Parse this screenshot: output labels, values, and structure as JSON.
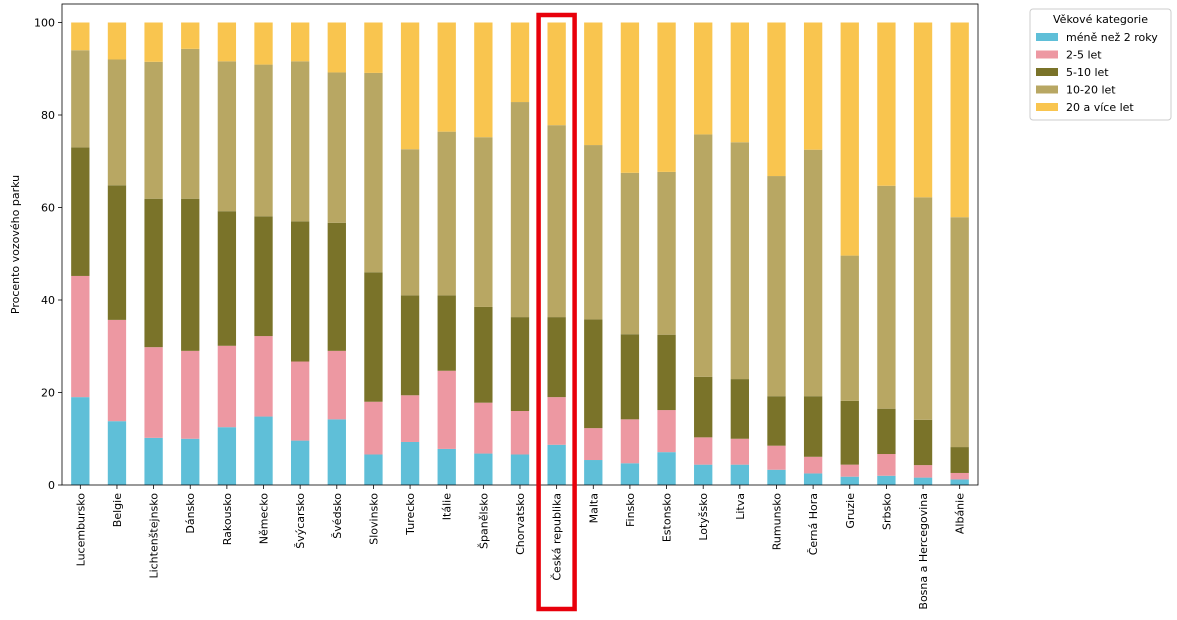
{
  "chart_data": {
    "type": "bar",
    "stacked": true,
    "ylabel": "Procento vozového parku",
    "xlabel": "",
    "ylim": [
      0,
      104
    ],
    "yticks": [
      0,
      20,
      40,
      60,
      80,
      100
    ],
    "grid": false,
    "legend": {
      "title": "Věkové kategorie",
      "placement": "outside top-right"
    },
    "categories": [
      "Lucembursko",
      "Belgie",
      "Lichtenštejnsko",
      "Dánsko",
      "Rakousko",
      "Německo",
      "Švýcarsko",
      "Švédsko",
      "Slovinsko",
      "Turecko",
      "Itálie",
      "Španělsko",
      "Chorvatsko",
      "Česká republika",
      "Malta",
      "Finsko",
      "Estonsko",
      "Lotyšsko",
      "Litva",
      "Rumunsko",
      "Černá Hora",
      "Gruzie",
      "Srbsko",
      "Bosna a Hercegovina",
      "Albánie"
    ],
    "highlighted_category": "Česká republika",
    "highlight_color": "#e8000b",
    "series": [
      {
        "name": "méně než 2 roky",
        "color": "#5fbfd8",
        "values": [
          19.0,
          13.8,
          10.2,
          10.0,
          12.5,
          14.8,
          9.6,
          14.2,
          6.6,
          9.3,
          7.8,
          6.8,
          6.6,
          8.7,
          5.4,
          4.7,
          7.1,
          4.4,
          4.4,
          3.3,
          2.5,
          1.8,
          2.0,
          1.6,
          1.2
        ]
      },
      {
        "name": "2-5 let",
        "color": "#ed98a2",
        "values": [
          26.2,
          21.9,
          19.6,
          19.0,
          17.6,
          17.4,
          17.1,
          14.8,
          11.4,
          10.1,
          16.9,
          11.0,
          9.4,
          10.3,
          6.9,
          9.5,
          9.1,
          5.9,
          5.6,
          5.2,
          3.6,
          2.6,
          4.7,
          2.7,
          1.4
        ]
      },
      {
        "name": "5-10 let",
        "color": "#7a7329",
        "values": [
          27.8,
          29.1,
          32.1,
          32.9,
          29.1,
          25.9,
          30.3,
          27.7,
          28.0,
          21.6,
          16.3,
          20.7,
          20.3,
          17.3,
          23.5,
          18.4,
          16.3,
          13.1,
          12.9,
          10.7,
          13.1,
          13.8,
          9.8,
          9.8,
          5.6
        ]
      },
      {
        "name": "10-20 let",
        "color": "#b8a763",
        "values": [
          21.0,
          27.2,
          29.6,
          32.4,
          32.4,
          32.8,
          34.6,
          32.5,
          43.1,
          31.6,
          35.4,
          36.7,
          46.5,
          41.5,
          37.7,
          34.9,
          35.2,
          52.4,
          51.2,
          47.6,
          53.3,
          31.4,
          48.2,
          48.1,
          49.7
        ]
      },
      {
        "name": "20 a více let",
        "color": "#f9c54f",
        "values": [
          6.0,
          8.0,
          8.5,
          5.7,
          8.4,
          9.1,
          8.4,
          10.8,
          10.9,
          27.4,
          23.6,
          24.8,
          17.2,
          22.2,
          26.5,
          32.5,
          32.3,
          24.2,
          25.9,
          33.2,
          27.5,
          50.4,
          35.3,
          37.8,
          42.1
        ]
      }
    ]
  }
}
